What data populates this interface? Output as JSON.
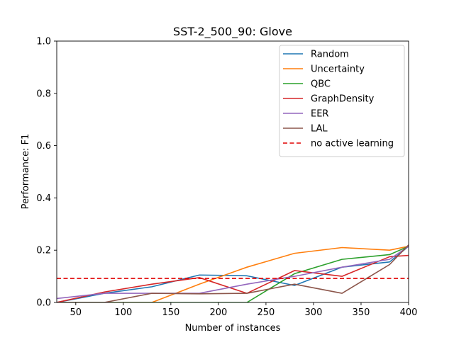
{
  "chart_data": {
    "type": "line",
    "title": "SST-2_500_90: Glove",
    "xlabel": "Number of instances",
    "ylabel": "Performance: F1",
    "xlim": [
      30,
      400
    ],
    "ylim": [
      0,
      1.0
    ],
    "xticks": [
      50,
      100,
      150,
      200,
      250,
      300,
      350,
      400
    ],
    "yticks": [
      0.0,
      0.2,
      0.4,
      0.6,
      0.8,
      1.0
    ],
    "xtick_labels": [
      "50",
      "100",
      "150",
      "200",
      "250",
      "300",
      "350",
      "400"
    ],
    "ytick_labels": [
      "0.0",
      "0.2",
      "0.4",
      "0.6",
      "0.8",
      "1.0"
    ],
    "grid": false,
    "legend_position": "top-right",
    "series": [
      {
        "name": "Random",
        "color": "#1f77b4",
        "dashed": false,
        "x": [
          30,
          80,
          130,
          180,
          230,
          280,
          330,
          380,
          400
        ],
        "y": [
          0.0,
          0.035,
          0.06,
          0.105,
          0.102,
          0.065,
          0.135,
          0.155,
          0.215
        ]
      },
      {
        "name": "Uncertainty",
        "color": "#ff7f0e",
        "dashed": false,
        "x": [
          30,
          80,
          130,
          180,
          230,
          280,
          330,
          380,
          400
        ],
        "y": [
          0.0,
          0.0,
          0.0,
          0.07,
          0.135,
          0.188,
          0.21,
          0.2,
          0.215
        ]
      },
      {
        "name": "QBC",
        "color": "#2ca02c",
        "dashed": false,
        "x": [
          30,
          80,
          130,
          180,
          230,
          280,
          330,
          380,
          400
        ],
        "y": [
          0.0,
          0.0,
          0.0,
          0.0,
          0.0,
          0.11,
          0.165,
          0.183,
          0.215
        ]
      },
      {
        "name": "GraphDensity",
        "color": "#d62728",
        "dashed": false,
        "x": [
          30,
          80,
          130,
          180,
          230,
          280,
          330,
          380,
          400
        ],
        "y": [
          0.0,
          0.04,
          0.07,
          0.095,
          0.035,
          0.122,
          0.1,
          0.175,
          0.18
        ]
      },
      {
        "name": "EER",
        "color": "#9467bd",
        "dashed": false,
        "x": [
          30,
          80,
          130,
          180,
          230,
          280,
          330,
          380,
          400
        ],
        "y": [
          0.015,
          0.035,
          0.035,
          0.035,
          0.07,
          0.1,
          0.135,
          0.165,
          0.215
        ]
      },
      {
        "name": "LAL",
        "color": "#8c564b",
        "dashed": false,
        "x": [
          30,
          80,
          130,
          180,
          230,
          280,
          330,
          380,
          400
        ],
        "y": [
          0.0,
          0.0,
          0.035,
          0.033,
          0.035,
          0.07,
          0.035,
          0.145,
          0.22
        ]
      },
      {
        "name": "no active learning",
        "color": "#e00000",
        "dashed": true,
        "x": [
          30,
          400
        ],
        "y": [
          0.092,
          0.092
        ]
      }
    ]
  }
}
